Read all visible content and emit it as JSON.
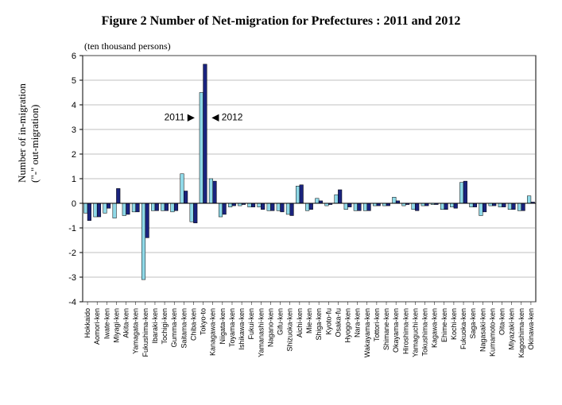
{
  "title": "Figure 2   Number of Net-migration for Prefectures : 2011 and 2012",
  "unit_label": "(ten thousand persons)",
  "ylabel_line1": "Number of  in-migration",
  "ylabel_line2": "(\"-\" out-migration)",
  "legend_2011": "2011 ▶",
  "legend_2012": "◀ 2012",
  "chart": {
    "type": "bar-grouped",
    "background_color": "#ffffff",
    "grid_color": "#808080",
    "axis_color": "#000000",
    "ylim": [
      -4,
      6
    ],
    "ytick_step": 1,
    "bar_colors": {
      "2011": "#8fd9e8",
      "2012": "#1a237e"
    },
    "bar_border": "#000000",
    "label_fontsize": 9,
    "tick_fontsize": 11,
    "categories": [
      "Hokkaido",
      "Aomori-ken",
      "Iwate-ken",
      "Miyagi-ken",
      "Akita-ken",
      "Yamagata-ken",
      "Fukushima-ken",
      "Ibaraki-ken",
      "Tochigi-ken",
      "Gumma-ken",
      "Saitama-ken",
      "Chiba-ken",
      "Tokyo-to",
      "Kanagawa-ken",
      "Niigata-ken",
      "Toyama-ken",
      "Ishikawa-ken",
      "Fukui-ken",
      "Yamanashi-ken",
      "Nagano-ken",
      "Gifu-ken",
      "Shizuoka-ken",
      "Aichi-ken",
      "Mie-ken",
      "Shiga-ken",
      "Kyoto-fu",
      "Osaka-fu",
      "Hyogo-ken",
      "Nara-ken",
      "Wakayama-ken",
      "Tottori-ken",
      "Shimane-ken",
      "Okayama-ken",
      "Hiroshima-ken",
      "Yamaguchi-ken",
      "Tokushima-ken",
      "Kagawa-ken",
      "Ehime-ken",
      "Kochi-ken",
      "Fukuoka-ken",
      "Saga-ken",
      "Nagasaki-ken",
      "Kumamoto-ken",
      "Oita-ken",
      "Miyazaki-ken",
      "Kagoshima-ken",
      "Okinawa-ken"
    ],
    "series": {
      "2011": [
        -0.4,
        -0.55,
        -0.4,
        -0.6,
        -0.5,
        -0.35,
        -3.1,
        -0.3,
        -0.3,
        -0.35,
        1.2,
        -0.75,
        4.5,
        1.0,
        -0.55,
        -0.15,
        -0.1,
        -0.15,
        -0.15,
        -0.3,
        -0.3,
        -0.45,
        0.7,
        -0.3,
        0.2,
        -0.1,
        0.35,
        -0.25,
        -0.3,
        -0.3,
        -0.1,
        -0.1,
        0.25,
        -0.1,
        -0.25,
        -0.1,
        -0.05,
        -0.25,
        -0.15,
        0.85,
        -0.15,
        -0.5,
        -0.1,
        -0.15,
        -0.25,
        -0.3,
        0.3
      ],
      "2012": [
        -0.7,
        -0.55,
        -0.2,
        0.6,
        -0.45,
        -0.35,
        -1.4,
        -0.3,
        -0.3,
        -0.3,
        0.5,
        -0.8,
        5.65,
        0.9,
        -0.45,
        -0.1,
        -0.05,
        -0.15,
        -0.25,
        -0.3,
        -0.35,
        -0.5,
        0.75,
        -0.25,
        0.1,
        -0.05,
        0.55,
        -0.15,
        -0.3,
        -0.3,
        -0.1,
        -0.1,
        0.1,
        -0.05,
        -0.3,
        -0.1,
        -0.05,
        -0.25,
        -0.2,
        0.9,
        -0.15,
        -0.35,
        -0.1,
        -0.15,
        -0.25,
        -0.3,
        0.05
      ]
    }
  }
}
